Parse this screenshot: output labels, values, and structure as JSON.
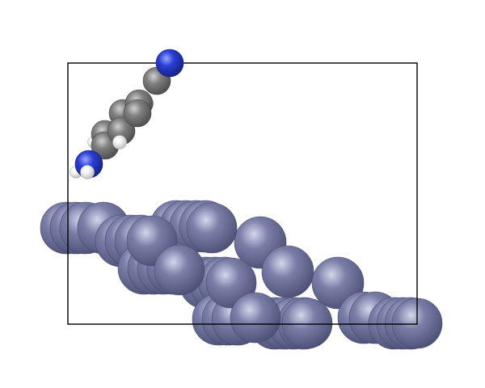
{
  "scene": {
    "background": "#ffffff",
    "cell_color": "#000000",
    "elements": {
      "metal": {
        "color": "#7b7fa8",
        "highlight": "#d4d6ea",
        "shadow": "#4a4d72"
      },
      "carbon": {
        "color": "#7f7f7f",
        "highlight": "#d0d0d0",
        "shadow": "#4a4a4a"
      },
      "nitrogen": {
        "color": "#2a3fd6",
        "highlight": "#9aa6ff",
        "shadow": "#141f7a"
      },
      "hydrogen": {
        "color": "#f2f2f2",
        "highlight": "#ffffff",
        "shadow": "#b8b8b8"
      }
    }
  }
}
